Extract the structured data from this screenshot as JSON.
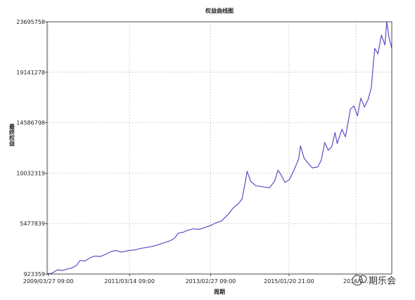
{
  "chart_data": {
    "type": "line",
    "title": "权益曲线图",
    "xlabel": "周期",
    "ylabel": "最终权益",
    "ylim": [
      923359,
      23695758
    ],
    "xlim": [
      "2009-03-17",
      "2017-07-15"
    ],
    "grid": true,
    "legend": "none",
    "yticks": [
      923359,
      5477839,
      10032319,
      14586798,
      19141278,
      23695758
    ],
    "ytick_labels": [
      "923359",
      "5477839",
      "10032319",
      "14586798",
      "19141278",
      "23695758"
    ],
    "xticks": [
      "2009-03-27",
      "2011-03-14",
      "2013-02-27",
      "2015-01-20",
      "2016-09-01"
    ],
    "xtick_labels": [
      "2009/03/27 09:00",
      "2011/03/14 09:00",
      "2013/02/27 09:00",
      "2015/01/20 21:00",
      "2016/0..."
    ],
    "series": [
      {
        "color": "#5b4fc4",
        "points": [
          [
            "2009-03-17",
            923359
          ],
          [
            "2009-05-01",
            1000000
          ],
          [
            "2009-06-15",
            1300000
          ],
          [
            "2009-08-01",
            1250000
          ],
          [
            "2009-09-01",
            1350000
          ],
          [
            "2009-10-15",
            1450000
          ],
          [
            "2009-12-01",
            1700000
          ],
          [
            "2010-01-01",
            2150000
          ],
          [
            "2010-02-15",
            2100000
          ],
          [
            "2010-04-01",
            2400000
          ],
          [
            "2010-05-15",
            2550000
          ],
          [
            "2010-07-01",
            2500000
          ],
          [
            "2010-08-15",
            2700000
          ],
          [
            "2010-10-01",
            2950000
          ],
          [
            "2010-11-15",
            3050000
          ],
          [
            "2011-01-01",
            2900000
          ],
          [
            "2011-03-14",
            3050000
          ],
          [
            "2011-05-01",
            3100000
          ],
          [
            "2011-07-01",
            3250000
          ],
          [
            "2011-09-01",
            3350000
          ],
          [
            "2011-11-01",
            3500000
          ],
          [
            "2012-01-01",
            3700000
          ],
          [
            "2012-03-01",
            3900000
          ],
          [
            "2012-04-15",
            4150000
          ],
          [
            "2012-05-15",
            4600000
          ],
          [
            "2012-07-01",
            4700000
          ],
          [
            "2012-08-15",
            4900000
          ],
          [
            "2012-10-01",
            5000000
          ],
          [
            "2012-11-15",
            4950000
          ],
          [
            "2013-01-01",
            5100000
          ],
          [
            "2013-02-27",
            5300000
          ],
          [
            "2013-04-15",
            5550000
          ],
          [
            "2013-06-01",
            5700000
          ],
          [
            "2013-08-01",
            6300000
          ],
          [
            "2013-09-15",
            6900000
          ],
          [
            "2013-11-01",
            7300000
          ],
          [
            "2013-12-01",
            7700000
          ],
          [
            "2014-01-01",
            9300000
          ],
          [
            "2014-01-15",
            10200000
          ],
          [
            "2014-02-15",
            9300000
          ],
          [
            "2014-04-01",
            8900000
          ],
          [
            "2014-06-01",
            8800000
          ],
          [
            "2014-08-01",
            8700000
          ],
          [
            "2014-09-15",
            9300000
          ],
          [
            "2014-10-15",
            10300000
          ],
          [
            "2014-11-15",
            9800000
          ],
          [
            "2014-12-15",
            9200000
          ],
          [
            "2015-01-20",
            9400000
          ],
          [
            "2015-03-01",
            10200000
          ],
          [
            "2015-04-15",
            11300000
          ],
          [
            "2015-05-01",
            12500000
          ],
          [
            "2015-06-01",
            11400000
          ],
          [
            "2015-07-01",
            11000000
          ],
          [
            "2015-08-15",
            10500000
          ],
          [
            "2015-10-01",
            10600000
          ],
          [
            "2015-11-01",
            11200000
          ],
          [
            "2015-12-01",
            12800000
          ],
          [
            "2016-01-01",
            12100000
          ],
          [
            "2016-02-01",
            12400000
          ],
          [
            "2016-03-01",
            13700000
          ],
          [
            "2016-03-20",
            12700000
          ],
          [
            "2016-05-01",
            14000000
          ],
          [
            "2016-06-01",
            13300000
          ],
          [
            "2016-07-15",
            15800000
          ],
          [
            "2016-08-15",
            16100000
          ],
          [
            "2016-09-15",
            15200000
          ],
          [
            "2016-10-15",
            16800000
          ],
          [
            "2016-11-15",
            16000000
          ],
          [
            "2016-12-15",
            16600000
          ],
          [
            "2017-01-15",
            17700000
          ],
          [
            "2017-02-01",
            19800000
          ],
          [
            "2017-02-15",
            21300000
          ],
          [
            "2017-03-15",
            20800000
          ],
          [
            "2017-04-15",
            22500000
          ],
          [
            "2017-05-15",
            21600000
          ],
          [
            "2017-06-01",
            23700000
          ],
          [
            "2017-06-20",
            22300000
          ],
          [
            "2017-07-15",
            21300000
          ]
        ]
      }
    ]
  },
  "watermark": "期乐会"
}
